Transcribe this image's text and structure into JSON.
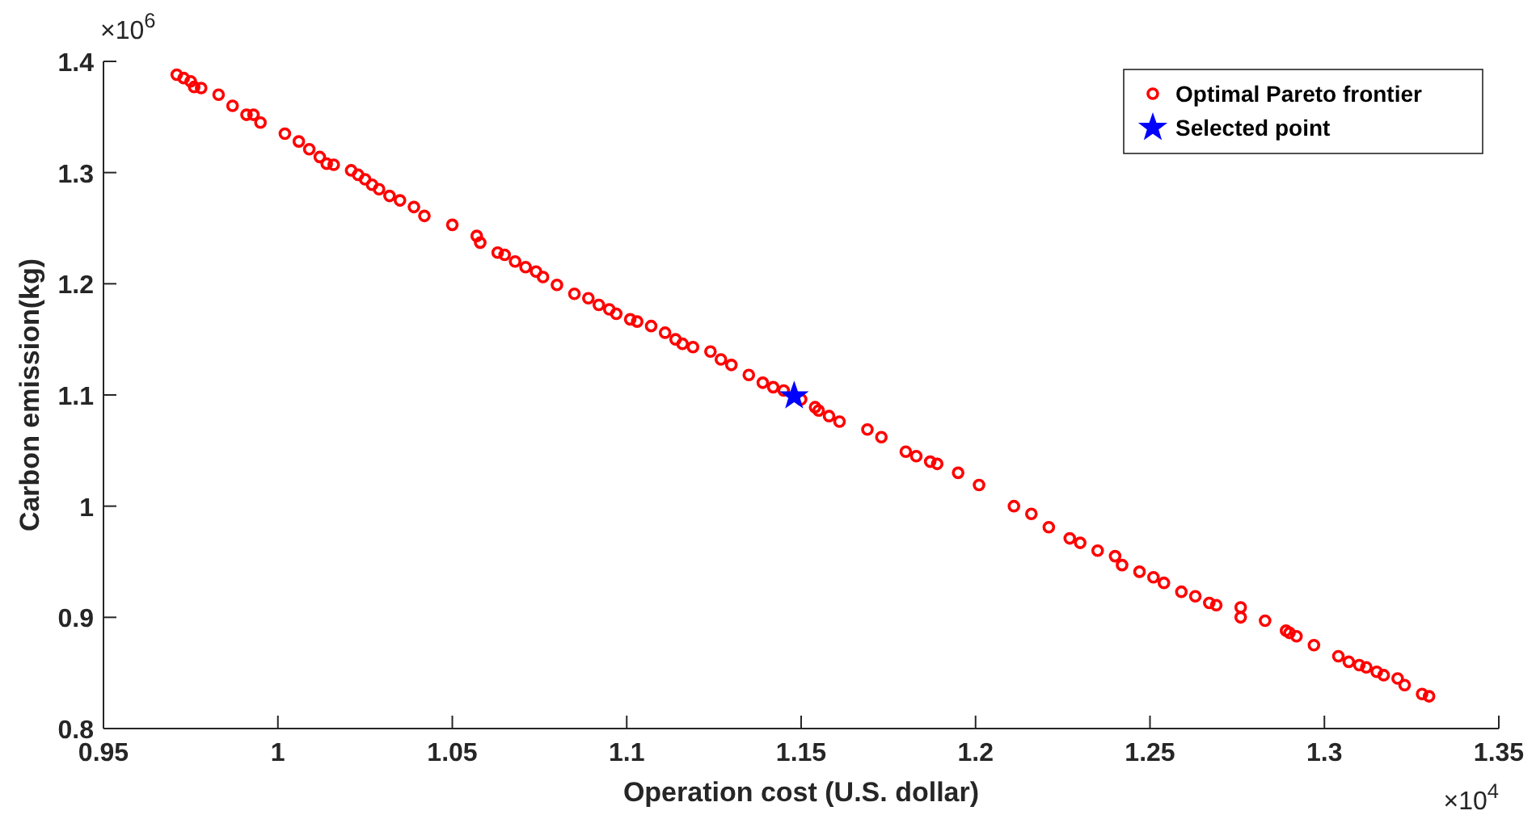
{
  "chart_data": {
    "type": "scatter",
    "xlabel": "Operation cost (U.S. dollar)",
    "ylabel": "Carbon emission(kg)",
    "annotations": [
      "×10$^{4}$",
      "×10$^{6}$"
    ],
    "xlim": [
      0.95,
      1.35
    ],
    "xticks": [
      0.95,
      1,
      1.05,
      1.1,
      1.15,
      1.2,
      1.25,
      1.3,
      1.35
    ],
    "ylim": [
      0.8,
      1.4
    ],
    "yticks": [
      0.8,
      0.9,
      1,
      1.1,
      1.2,
      1.3,
      1.4
    ],
    "grid": false,
    "legend": "top right",
    "series": [
      {
        "name": "Optimal Pareto frontier",
        "color": "#ff0000",
        "marker": "circle",
        "x": [
          0.971,
          0.973,
          0.975,
          0.976,
          0.978,
          0.983,
          0.987,
          0.991,
          0.993,
          0.995,
          1.002,
          1.006,
          1.009,
          1.012,
          1.014,
          1.016,
          1.021,
          1.023,
          1.025,
          1.027,
          1.029,
          1.032,
          1.035,
          1.039,
          1.042,
          1.05,
          1.057,
          1.058,
          1.063,
          1.065,
          1.068,
          1.071,
          1.074,
          1.076,
          1.08,
          1.085,
          1.089,
          1.092,
          1.095,
          1.097,
          1.101,
          1.103,
          1.107,
          1.111,
          1.114,
          1.116,
          1.119,
          1.124,
          1.127,
          1.13,
          1.135,
          1.139,
          1.142,
          1.145,
          1.15,
          1.154,
          1.155,
          1.158,
          1.161,
          1.169,
          1.173,
          1.18,
          1.183,
          1.187,
          1.189,
          1.195,
          1.201,
          1.211,
          1.216,
          1.221,
          1.227,
          1.23,
          1.235,
          1.24,
          1.242,
          1.247,
          1.251,
          1.254,
          1.259,
          1.263,
          1.267,
          1.269,
          1.276,
          1.276,
          1.283,
          1.289,
          1.29,
          1.292,
          1.297,
          1.304,
          1.307,
          1.31,
          1.312,
          1.315,
          1.317,
          1.321,
          1.323,
          1.328,
          1.33
        ],
        "values": [
          1.388,
          1.385,
          1.382,
          1.377,
          1.376,
          1.37,
          1.36,
          1.352,
          1.352,
          1.345,
          1.335,
          1.328,
          1.321,
          1.314,
          1.308,
          1.307,
          1.302,
          1.298,
          1.294,
          1.289,
          1.285,
          1.279,
          1.275,
          1.269,
          1.261,
          1.253,
          1.243,
          1.237,
          1.228,
          1.226,
          1.22,
          1.215,
          1.211,
          1.206,
          1.199,
          1.191,
          1.187,
          1.181,
          1.177,
          1.173,
          1.168,
          1.166,
          1.162,
          1.156,
          1.15,
          1.146,
          1.143,
          1.139,
          1.132,
          1.127,
          1.118,
          1.111,
          1.107,
          1.104,
          1.096,
          1.089,
          1.086,
          1.081,
          1.076,
          1.069,
          1.062,
          1.049,
          1.045,
          1.04,
          1.038,
          1.03,
          1.019,
          1.0,
          0.993,
          0.981,
          0.971,
          0.967,
          0.96,
          0.955,
          0.947,
          0.941,
          0.936,
          0.931,
          0.923,
          0.919,
          0.913,
          0.911,
          0.909,
          0.9,
          0.897,
          0.888,
          0.886,
          0.883,
          0.875,
          0.865,
          0.86,
          0.857,
          0.855,
          0.851,
          0.848,
          0.845,
          0.839,
          0.831,
          0.829
        ]
      },
      {
        "name": "Selected point",
        "color": "#0000ff",
        "marker": "star",
        "x": [
          1.148
        ],
        "values": [
          1.099
        ]
      }
    ]
  }
}
